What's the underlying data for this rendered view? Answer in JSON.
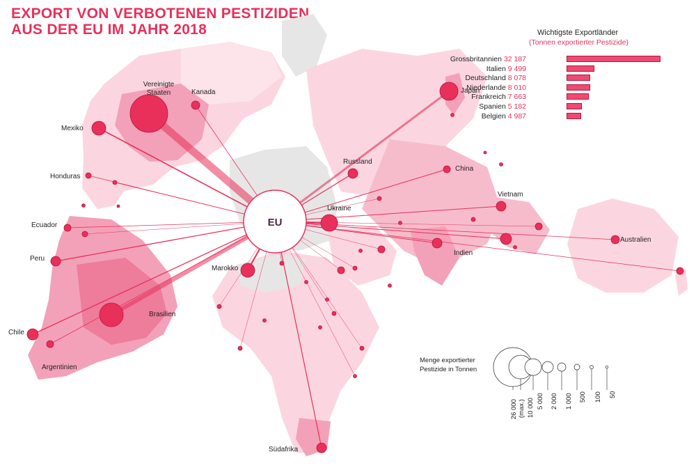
{
  "title_line1": "EXPORT VON VERBOTENEN PESTIZIDEN",
  "title_line2": "AUS DER EU IM JAHR 2018",
  "center_label": "EU",
  "ranking": {
    "heading": "Wichtigste Exportländer",
    "subheading": "(Tonnen exportierter Pestizide)",
    "max": 32187,
    "items": [
      {
        "country": "Grossbritannien",
        "value": 32187,
        "value_label": "32 187"
      },
      {
        "country": "Italien",
        "value": 9499,
        "value_label": "9 499"
      },
      {
        "country": "Deutschland",
        "value": 8078,
        "value_label": "8 078"
      },
      {
        "country": "Niederlande",
        "value": 8010,
        "value_label": "8 010"
      },
      {
        "country": "Frankreich",
        "value": 7663,
        "value_label": "7 663"
      },
      {
        "country": "Spanien",
        "value": 5182,
        "value_label": "5 182"
      },
      {
        "country": "Belgien",
        "value": 4987,
        "value_label": "4 987"
      }
    ]
  },
  "country_labels": {
    "usa_line1": "Vereinigte",
    "usa_line2": "Staaten",
    "kanada": "Kanada",
    "mexiko": "Mexiko",
    "honduras": "Honduras",
    "ecuador": "Ecuador",
    "peru": "Peru",
    "chile": "Chile",
    "argentinien": "Argentinien",
    "brasilien": "Brasilien",
    "marokko": "Marokko",
    "ukraine": "Ukraine",
    "russland": "Russland",
    "china": "China",
    "japan": "Japan",
    "vietnam": "Vietnam",
    "indien": "Indien",
    "australien": "Australien",
    "suedafrika": "Südafrika"
  },
  "size_legend": {
    "title_line1": "Menge exportierter",
    "title_line2": "Pestizide in Tonnen",
    "steps": [
      {
        "label": "26 000",
        "sublabel": "(max.)",
        "tonnes": 26000
      },
      {
        "label": "10 000",
        "tonnes": 10000
      },
      {
        "label": "5 000",
        "tonnes": 5000
      },
      {
        "label": "2 000",
        "tonnes": 2000
      },
      {
        "label": "1 000",
        "tonnes": 1000
      },
      {
        "label": "500",
        "tonnes": 500
      },
      {
        "label": "100",
        "tonnes": 100
      },
      {
        "label": "50",
        "tonnes": 50
      }
    ]
  },
  "colors": {
    "accent": "#e8305a",
    "bubble": "#e8305a",
    "land_grey": "#e6e6e6",
    "land_pink_light": "#fbd6e0",
    "land_pink_mid": "#f5a8bd",
    "land_pink_dark": "#ee7c9b"
  }
}
